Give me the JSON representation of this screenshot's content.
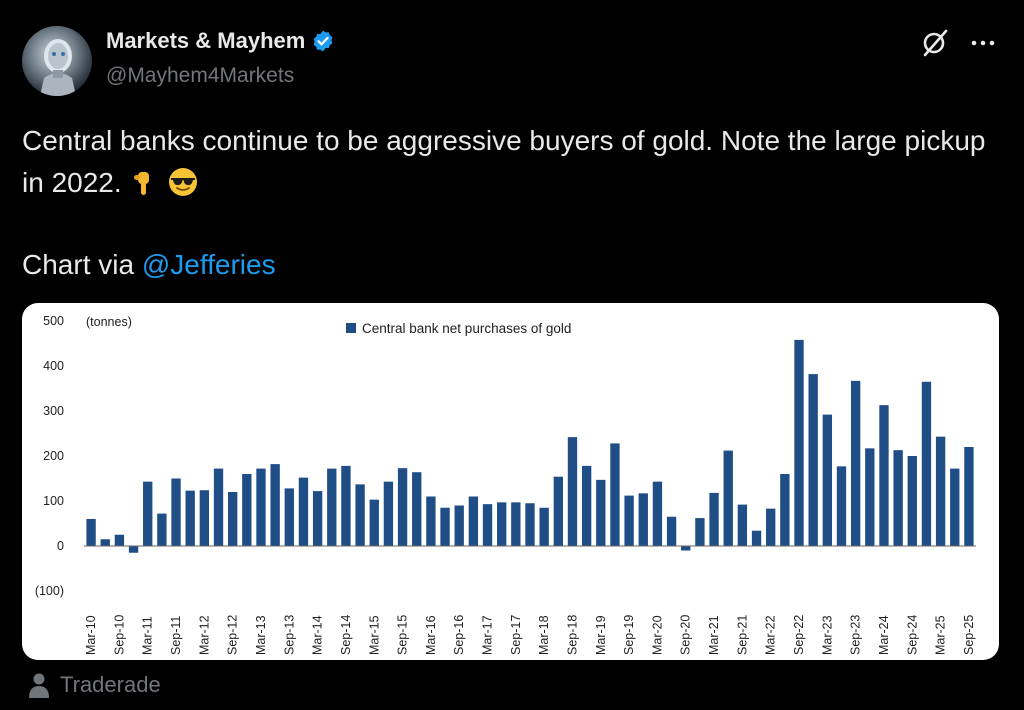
{
  "author": {
    "name": "Markets & Mayhem",
    "handle": "@Mayhem4Markets",
    "verified": true,
    "avatar_icon": "robot-avatar-icon"
  },
  "actions": {
    "grok_icon": "grok-icon",
    "more_icon": "more-icon"
  },
  "tweet": {
    "text": "Central banks continue to be aggressive buyers of gold. Note the large pickup in 2022.",
    "emojis": [
      "point-down-emoji",
      "sunglasses-emoji"
    ],
    "via_prefix": "Chart via ",
    "mention": "@Jefferies"
  },
  "footer": {
    "label": "Traderade",
    "icon": "person-icon"
  },
  "colors": {
    "bar": "#1f4e86",
    "mention": "#1d9bf0",
    "muted": "#71767b"
  },
  "chart_data": {
    "type": "bar",
    "title": "",
    "unit_label": "(tonnes)",
    "legend": "Central bank net purchases of gold",
    "legend_position": "top-center",
    "ylim": [
      -100,
      500
    ],
    "yticks": [
      -100,
      0,
      100,
      200,
      300,
      400,
      500
    ],
    "ytick_labels": [
      "(100)",
      "0",
      "100",
      "200",
      "300",
      "400",
      "500"
    ],
    "x_tick_labels": [
      "Mar-10",
      "Sep-10",
      "Mar-11",
      "Sep-11",
      "Mar-12",
      "Sep-12",
      "Mar-13",
      "Sep-13",
      "Mar-14",
      "Sep-14",
      "Mar-15",
      "Sep-15",
      "Mar-16",
      "Sep-16",
      "Mar-17",
      "Sep-17",
      "Mar-18",
      "Sep-18",
      "Mar-19",
      "Sep-19",
      "Mar-20",
      "Sep-20",
      "Mar-21",
      "Sep-21",
      "Mar-22",
      "Sep-22",
      "Mar-23",
      "Sep-23",
      "Mar-24",
      "Sep-24",
      "Mar-25",
      "Sep-25"
    ],
    "values": [
      60,
      15,
      25,
      -15,
      143,
      72,
      150,
      123,
      124,
      172,
      120,
      160,
      172,
      182,
      128,
      152,
      122,
      172,
      178,
      137,
      103,
      143,
      173,
      164,
      110,
      85,
      90,
      110,
      93,
      97,
      97,
      95,
      85,
      154,
      242,
      178,
      147,
      228,
      112,
      117,
      143,
      65,
      -10,
      62,
      118,
      212,
      92,
      34,
      83,
      160,
      458,
      382,
      292,
      177,
      367,
      217,
      313,
      213,
      200,
      365,
      243,
      172,
      220
    ]
  }
}
